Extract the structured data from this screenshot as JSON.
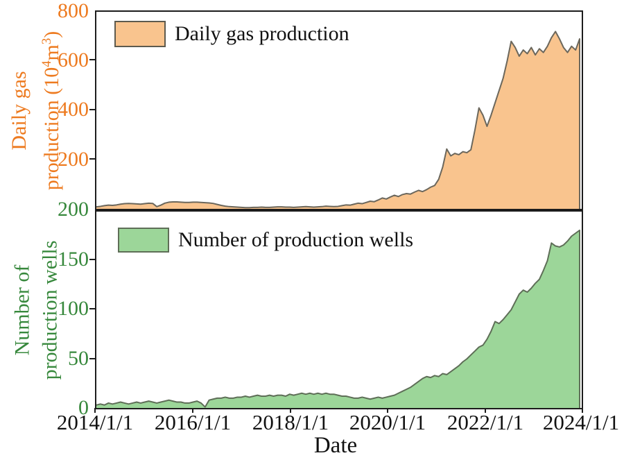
{
  "legend": {
    "gas": "Daily gas production",
    "wells": "Number of production wells"
  },
  "axes": {
    "gas": {
      "title_line1": "Daily gas",
      "title2": {
        "a": "production (10",
        "sup1": "4",
        "b": "m",
        "sup2": "3",
        "c": ")"
      },
      "tick_labels": [
        "800",
        "600",
        "400",
        "200"
      ]
    },
    "wells": {
      "title_line1": "Number of",
      "title_line2": "production wells",
      "tick_labels": [
        "200",
        "150",
        "100",
        "50",
        "0"
      ]
    },
    "x": {
      "label": "Date",
      "tick_labels": [
        "2014/1/1",
        "2016/1/1",
        "2018/1/1",
        "2020/1/1",
        "2022/1/1",
        "2024/1/1"
      ]
    }
  },
  "colors": {
    "gas_fill": "#F9C48E",
    "gas_line": "#6B675C",
    "gas_axis_text": "#ED7A1F",
    "wells_fill": "#9CD699",
    "wells_line": "#5E6E57",
    "wells_axis_text": "#37883C",
    "spine": "#1c1c1c"
  },
  "chart_data": [
    {
      "type": "area",
      "panel": "top",
      "name": "Daily gas production",
      "ylabel": "Daily gas production (10^4 m^3)",
      "x_start": "2014/1/1",
      "x_end": "2024/1/1",
      "x_step": "1 month",
      "ylim": [
        0,
        800
      ],
      "yticks": [
        0,
        200,
        400,
        600,
        800
      ],
      "fill": "#F9C48E",
      "line": "#6B675C",
      "values": [
        8,
        10,
        13,
        15,
        14,
        16,
        19,
        21,
        22,
        21,
        20,
        19,
        21,
        23,
        22,
        9,
        15,
        23,
        27,
        28,
        28,
        27,
        26,
        26,
        27,
        27,
        26,
        25,
        24,
        22,
        18,
        14,
        11,
        9,
        8,
        7,
        6,
        5,
        5,
        6,
        6,
        7,
        6,
        6,
        7,
        8,
        8,
        7,
        7,
        6,
        7,
        8,
        9,
        8,
        7,
        8,
        9,
        11,
        10,
        9,
        10,
        13,
        16,
        15,
        19,
        23,
        21,
        26,
        31,
        29,
        36,
        44,
        40,
        48,
        55,
        50,
        58,
        62,
        60,
        68,
        75,
        70,
        78,
        88,
        95,
        120,
        170,
        243,
        215,
        225,
        220,
        232,
        228,
        240,
        320,
        410,
        380,
        335,
        380,
        430,
        480,
        530,
        600,
        680,
        655,
        620,
        645,
        630,
        655,
        625,
        650,
        635,
        660,
        695,
        720,
        690,
        655,
        635,
        660,
        645,
        690
      ]
    },
    {
      "type": "area",
      "panel": "bottom",
      "name": "Number of production wells",
      "ylabel": "Number of production wells",
      "x_start": "2014/1/1",
      "x_end": "2024/1/1",
      "x_step": "1 month",
      "ylim": [
        0,
        200
      ],
      "yticks": [
        0,
        50,
        100,
        150,
        200
      ],
      "fill": "#9CD699",
      "line": "#5E6E57",
      "values": [
        3,
        4,
        3,
        5,
        4,
        5,
        6,
        5,
        4,
        5,
        6,
        5,
        6,
        7,
        6,
        5,
        6,
        7,
        8,
        7,
        6,
        6,
        5,
        5,
        6,
        7,
        5,
        1,
        8,
        9,
        10,
        10,
        11,
        10,
        10,
        11,
        11,
        12,
        11,
        12,
        13,
        12,
        12,
        13,
        12,
        13,
        13,
        12,
        14,
        13,
        14,
        15,
        14,
        15,
        14,
        15,
        14,
        15,
        14,
        14,
        13,
        12,
        12,
        11,
        10,
        10,
        11,
        10,
        9,
        10,
        11,
        10,
        11,
        12,
        13,
        15,
        17,
        19,
        21,
        24,
        27,
        30,
        32,
        31,
        33,
        32,
        35,
        34,
        37,
        40,
        43,
        47,
        50,
        54,
        58,
        62,
        64,
        70,
        78,
        88,
        86,
        90,
        95,
        100,
        108,
        116,
        120,
        118,
        122,
        127,
        131,
        140,
        150,
        168,
        165,
        164,
        166,
        170,
        175,
        178,
        181
      ]
    }
  ]
}
